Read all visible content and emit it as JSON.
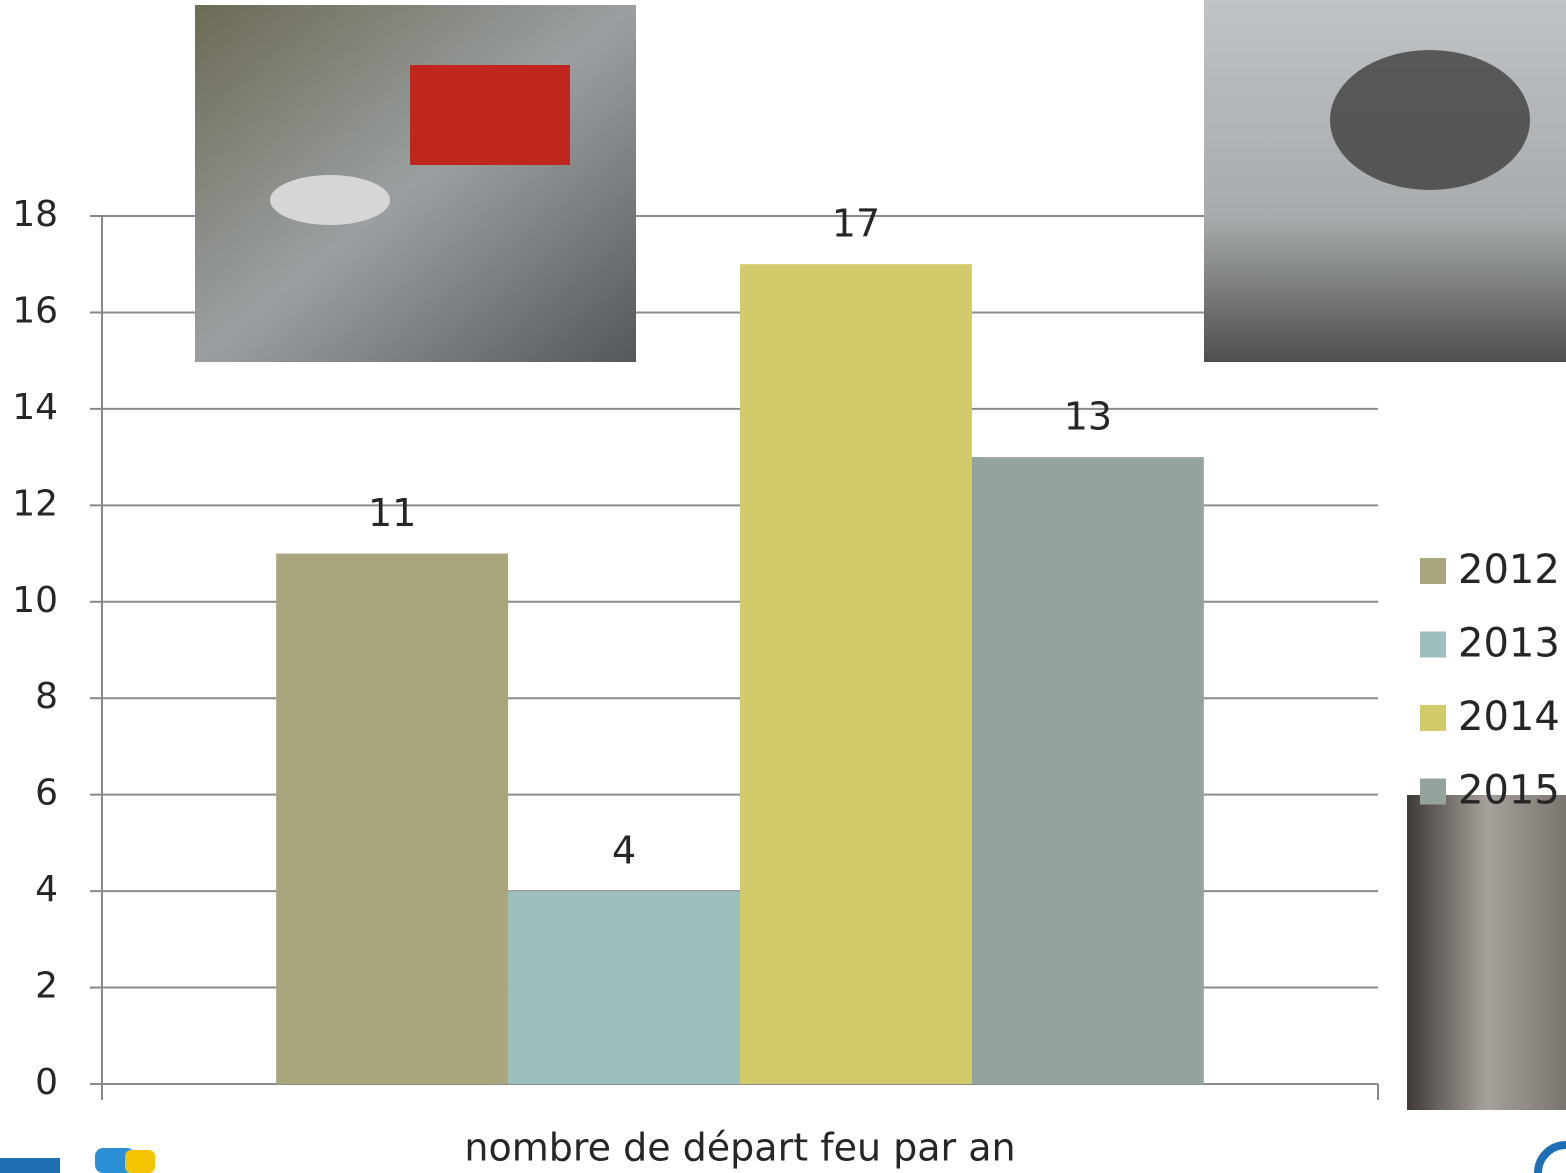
{
  "chart_data": {
    "type": "bar",
    "categories": [
      "nombre de départ feu par an"
    ],
    "series": [
      {
        "name": "2012",
        "color": "#a9a57c",
        "values": [
          11
        ]
      },
      {
        "name": "2013",
        "color": "#9cbebd",
        "values": [
          4
        ]
      },
      {
        "name": "2014",
        "color": "#d2cb6c",
        "values": [
          17
        ]
      },
      {
        "name": "2015",
        "color": "#95a39d",
        "values": [
          13
        ]
      }
    ],
    "ylim": [
      0,
      18
    ],
    "yticks": [
      0,
      2,
      4,
      6,
      8,
      10,
      12,
      14,
      16,
      18
    ],
    "grid": true,
    "legend": "right"
  }
}
